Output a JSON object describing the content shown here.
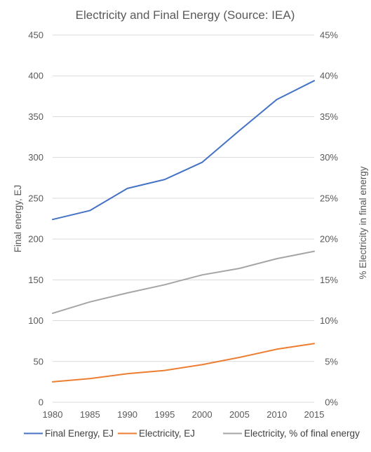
{
  "chart_data": {
    "type": "line",
    "title": "Electricity and Final Energy (Source: IEA)",
    "xlabel": "",
    "ylabel": "Final energy, EJ",
    "y2label": "% Electricity in final energy",
    "x": [
      1980,
      1985,
      1990,
      1995,
      2000,
      2005,
      2010,
      2015
    ],
    "x_ticks": [
      "1980",
      "1985",
      "1990",
      "1995",
      "2000",
      "2005",
      "2010",
      "2015"
    ],
    "ylim": [
      0,
      450
    ],
    "y_ticks": [
      "0",
      "50",
      "100",
      "150",
      "200",
      "250",
      "300",
      "350",
      "400",
      "450"
    ],
    "y2lim": [
      0,
      45
    ],
    "y2_ticks": [
      "0%",
      "5%",
      "10%",
      "15%",
      "20%",
      "25%",
      "30%",
      "35%",
      "40%",
      "45%"
    ],
    "grid": true,
    "legend_position": "bottom",
    "series": [
      {
        "name": "Final Energy, EJ",
        "axis": "left",
        "color": "#4472C4",
        "values": [
          224,
          235,
          262,
          273,
          294,
          333,
          371,
          394
        ]
      },
      {
        "name": "Electricity, EJ",
        "axis": "left",
        "color": "#ED7D31",
        "values": [
          25,
          29,
          35,
          39,
          46,
          55,
          65,
          72
        ]
      },
      {
        "name": "Electricity, % of final energy",
        "axis": "right",
        "color": "#A5A5A5",
        "values": [
          10.9,
          12.3,
          13.4,
          14.4,
          15.6,
          16.4,
          17.6,
          18.5
        ]
      }
    ]
  }
}
